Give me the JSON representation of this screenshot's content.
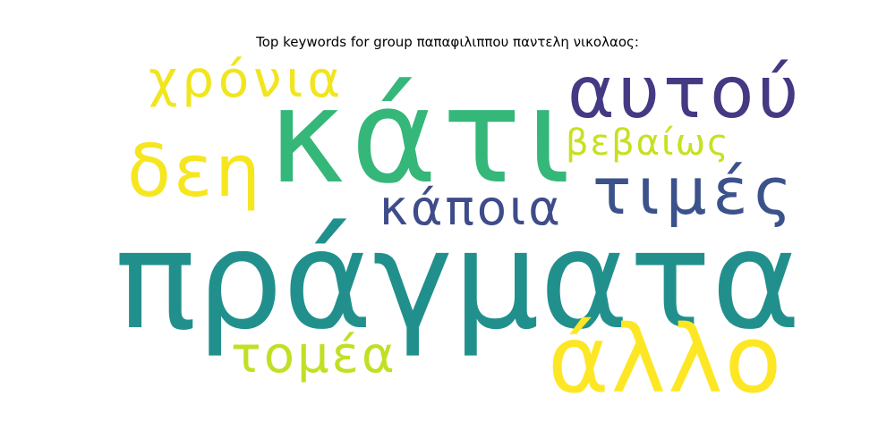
{
  "title": "Top keywords for group παπαφιλιππου παντελη νικολαος:",
  "words": [
    {
      "text": "πράγματα",
      "color": "#21908d"
    },
    {
      "text": "κάτι",
      "color": "#35b779"
    },
    {
      "text": "αυτού",
      "color": "#443a83"
    },
    {
      "text": "άλλο",
      "color": "#fde725"
    },
    {
      "text": "τιμές",
      "color": "#3b528b"
    },
    {
      "text": "δεη",
      "color": "#f6e620"
    },
    {
      "text": "χρόνια",
      "color": "#f1e51d"
    },
    {
      "text": "κάποια",
      "color": "#3e4c8a"
    },
    {
      "text": "τομέα",
      "color": "#c2df23"
    },
    {
      "text": "βεβαίως",
      "color": "#c8e020"
    }
  ]
}
